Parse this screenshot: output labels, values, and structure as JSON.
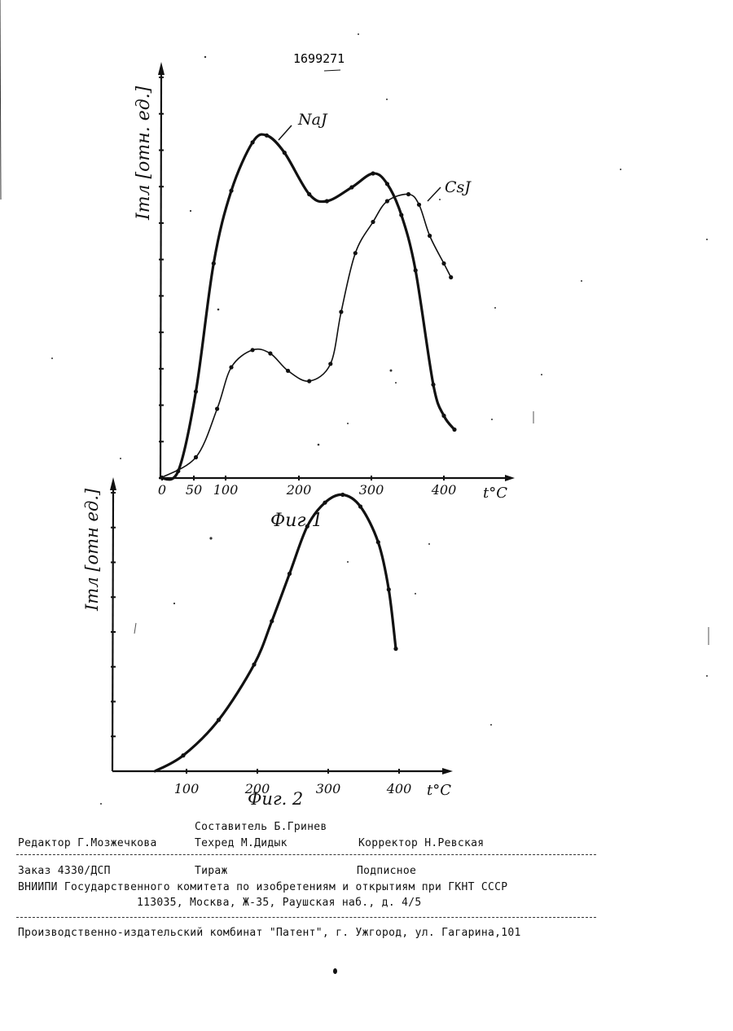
{
  "patent_number": "1699271",
  "figures": [
    {
      "id": "fig1",
      "caption": "Фиг 1",
      "ylabel": "Iтл [отн. ед.]",
      "xlabel": "t°C",
      "x_ticks": [
        "0",
        "50",
        "100",
        "200",
        "300",
        "400"
      ]
    },
    {
      "id": "fig2",
      "caption": "Фиг. 2",
      "ylabel": "Iтл [отн ед.]",
      "xlabel": "t°C",
      "x_ticks": [
        "100",
        "200",
        "300",
        "400"
      ]
    }
  ],
  "chart_data": [
    {
      "type": "line",
      "title": "Фиг 1",
      "xlabel": "t°C",
      "ylabel": "Iтл [отн. ед.]",
      "xlim": [
        0,
        480
      ],
      "ylim": [
        0,
        11
      ],
      "y_ticks": 11,
      "grid": false,
      "series": [
        {
          "name": "NaJ",
          "points": [
            [
              0,
              0
            ],
            [
              25,
              0.2
            ],
            [
              50,
              2.5
            ],
            [
              75,
              6.2
            ],
            [
              100,
              8.3
            ],
            [
              130,
              9.7
            ],
            [
              150,
              9.9
            ],
            [
              175,
              9.4
            ],
            [
              210,
              8.2
            ],
            [
              235,
              8.0
            ],
            [
              270,
              8.4
            ],
            [
              300,
              8.8
            ],
            [
              320,
              8.5
            ],
            [
              340,
              7.6
            ],
            [
              360,
              6.0
            ],
            [
              385,
              2.7
            ],
            [
              400,
              1.8
            ],
            [
              415,
              1.4
            ]
          ]
        },
        {
          "name": "CsJ",
          "points": [
            [
              0,
              0
            ],
            [
              50,
              0.6
            ],
            [
              80,
              2.0
            ],
            [
              100,
              3.2
            ],
            [
              130,
              3.7
            ],
            [
              155,
              3.6
            ],
            [
              180,
              3.1
            ],
            [
              210,
              2.8
            ],
            [
              240,
              3.3
            ],
            [
              255,
              4.8
            ],
            [
              275,
              6.5
            ],
            [
              300,
              7.4
            ],
            [
              320,
              8.0
            ],
            [
              350,
              8.2
            ],
            [
              365,
              7.9
            ],
            [
              380,
              7.0
            ],
            [
              400,
              6.2
            ],
            [
              410,
              5.8
            ]
          ],
          "name_label": "CsJ"
        }
      ]
    },
    {
      "type": "line",
      "title": "Фиг. 2",
      "xlabel": "t°C",
      "ylabel": "Iтл [отн ед.]",
      "xlim": [
        0,
        480
      ],
      "ylim": [
        0,
        9
      ],
      "y_ticks": 8,
      "grid": false,
      "series": [
        {
          "name": "",
          "points": [
            [
              60,
              0
            ],
            [
              100,
              0.4
            ],
            [
              150,
              1.3
            ],
            [
              200,
              2.7
            ],
            [
              225,
              3.8
            ],
            [
              250,
              5.0
            ],
            [
              275,
              6.2
            ],
            [
              300,
              6.8
            ],
            [
              325,
              7.0
            ],
            [
              350,
              6.7
            ],
            [
              375,
              5.8
            ],
            [
              390,
              4.6
            ],
            [
              400,
              3.1
            ]
          ]
        }
      ]
    }
  ],
  "colophon": {
    "compiler": "Составитель Б.Гринев",
    "editor": "Редактор Г.Мозжечкова",
    "techred": "Техред М.Дидык",
    "corrector": "Корректор Н.Ревская",
    "order": "Заказ 4330/ДСП",
    "tirazh": "Тираж",
    "podpisnoe": "Подписное",
    "vniipi": "ВНИИПИ Государственного комитета по изобретениям и открытиям при ГКНТ СССР",
    "address": "113035, Москва, Ж-35, Раушская наб., д. 4/5",
    "plant": "Производственно-издательский комбинат \"Патент\", г. Ужгород, ул. Гагарина,101"
  }
}
